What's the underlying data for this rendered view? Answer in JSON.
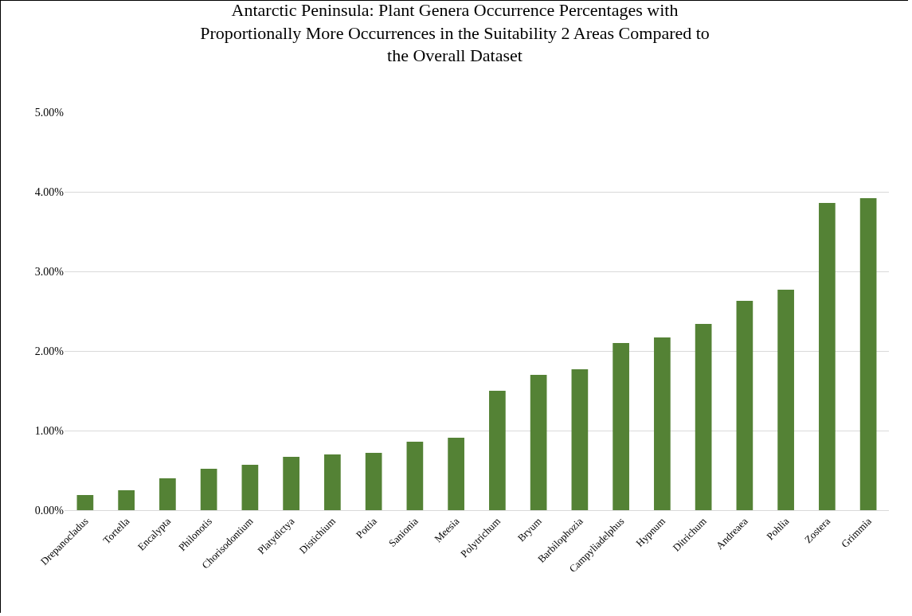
{
  "chart_data": {
    "type": "bar",
    "title": "Antarctic Peninsula: Plant Genera Occurrence Percentages with Proportionally More Occurrences in the Suitability 2 Areas Compared to the Overall Dataset",
    "categories": [
      "Drepanocladus",
      "Tortella",
      "Encalypta",
      "Philonotis",
      "Chorisodontium",
      "Platydictya",
      "Distichium",
      "Pottia",
      "Sanionia",
      "Meesia",
      "Polytrichum",
      "Bryum",
      "Barbilophozia",
      "Campyliadelphus",
      "Hypnum",
      "Ditrichum",
      "Andreaea",
      "Pohlia",
      "Zostera",
      "Grimmia"
    ],
    "values": [
      0.19,
      0.25,
      0.4,
      0.52,
      0.57,
      0.67,
      0.7,
      0.72,
      0.86,
      0.91,
      1.5,
      1.7,
      1.77,
      2.1,
      2.17,
      2.34,
      2.63,
      2.77,
      3.86,
      3.92
    ],
    "color": "#548235",
    "ylim": [
      0,
      5
    ],
    "yticks": [
      {
        "value": 0,
        "label": "0.00%"
      },
      {
        "value": 1,
        "label": "1.00%"
      },
      {
        "value": 2,
        "label": "2.00%"
      },
      {
        "value": 3,
        "label": "3.00%"
      },
      {
        "value": 4,
        "label": "4.00%"
      },
      {
        "value": 5,
        "label": "5.00%"
      }
    ],
    "grid": "y"
  }
}
